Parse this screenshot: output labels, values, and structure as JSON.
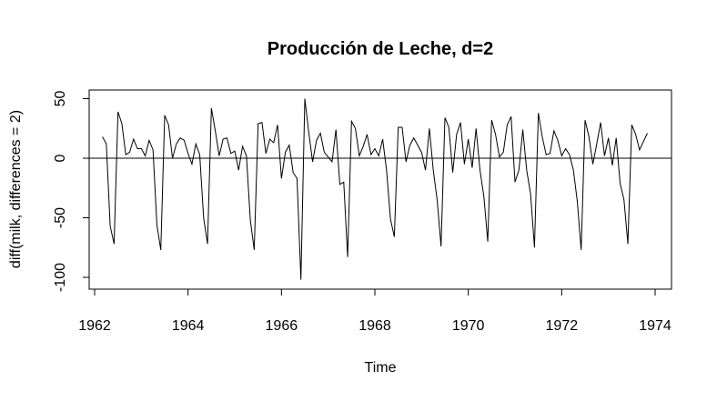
{
  "chart_data": {
    "type": "line",
    "title": "Producción de Leche, d=2",
    "xlabel": "Time",
    "ylabel": "diff(milk, differences = 2)",
    "xlim": [
      1962,
      1974
    ],
    "ylim": [
      -100,
      50
    ],
    "x_ticks": [
      1962,
      1964,
      1966,
      1968,
      1970,
      1972,
      1974
    ],
    "x_tick_labels": [
      "1962",
      "1964",
      "1966",
      "1968",
      "1970",
      "1972",
      "1974"
    ],
    "y_ticks": [
      -100,
      -50,
      0,
      50
    ],
    "y_tick_labels": [
      "-100",
      "-50",
      "0",
      "50"
    ],
    "reference_line": {
      "y": 0
    },
    "colors": {
      "line": "#000000",
      "background": "#ffffff"
    },
    "grid": false,
    "series": [
      {
        "start": [
          1962,
          3
        ],
        "frequency": 12,
        "values": [
          18,
          12,
          -57,
          -72,
          39,
          29,
          3,
          5,
          16,
          8,
          8,
          2,
          15,
          7,
          -56,
          -77,
          36,
          28,
          0,
          12,
          17,
          15,
          4,
          -5,
          12,
          3,
          -50,
          -72,
          42,
          23,
          2,
          16,
          17,
          4,
          6,
          -10,
          10,
          2,
          -52,
          -77,
          29,
          30,
          4,
          16,
          13,
          28,
          -17,
          5,
          11,
          -12,
          -17,
          -102,
          50,
          22,
          -3,
          15,
          21,
          5,
          1,
          -3,
          24,
          -22,
          -20,
          -83,
          31,
          25,
          2,
          10,
          20,
          3,
          8,
          2,
          16,
          -10,
          -51,
          -66,
          26,
          26,
          -3,
          11,
          17,
          11,
          5,
          -10,
          25,
          -10,
          -35,
          -74,
          34,
          26,
          -12,
          20,
          30,
          -5,
          16,
          -8,
          25,
          -10,
          -32,
          -70,
          32,
          20,
          1,
          5,
          28,
          35,
          -20,
          -10,
          24,
          -10,
          -30,
          -75,
          38,
          18,
          3,
          4,
          23,
          15,
          2,
          8,
          3,
          -10,
          -36,
          -77,
          32,
          18,
          -5,
          12,
          30,
          2,
          17,
          -6,
          17,
          -21,
          -35,
          -72,
          28,
          20,
          7,
          14,
          21
        ]
      }
    ]
  }
}
